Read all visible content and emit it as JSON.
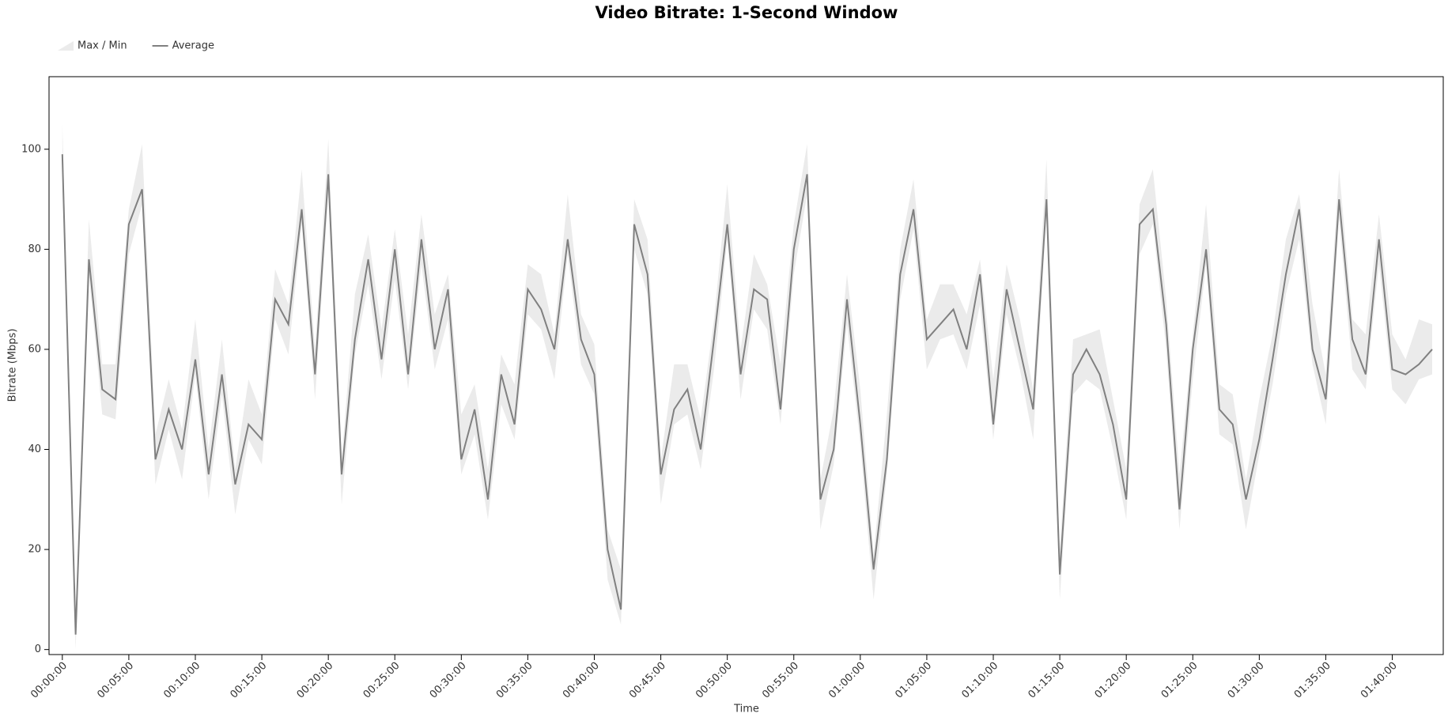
{
  "chart_data": {
    "type": "line",
    "title": "Video Bitrate: 1-Second Window",
    "x_label": "Time",
    "y_label": "Bitrate (Mbps)",
    "x": [
      0,
      60,
      120,
      180,
      240,
      300,
      360,
      420,
      480,
      540,
      600,
      660,
      720,
      780,
      840,
      900,
      960,
      1020,
      1080,
      1140,
      1200,
      1260,
      1320,
      1380,
      1440,
      1500,
      1560,
      1620,
      1680,
      1740,
      1800,
      1860,
      1920,
      1980,
      2040,
      2100,
      2160,
      2220,
      2280,
      2340,
      2400,
      2460,
      2520,
      2580,
      2640,
      2700,
      2760,
      2820,
      2880,
      2940,
      3000,
      3060,
      3120,
      3180,
      3240,
      3300,
      3360,
      3420,
      3480,
      3540,
      3600,
      3660,
      3720,
      3780,
      3840,
      3900,
      3960,
      4020,
      4080,
      4140,
      4200,
      4260,
      4320,
      4380,
      4440,
      4500,
      4560,
      4620,
      4680,
      4740,
      4800,
      4860,
      4920,
      4980,
      5040,
      5100,
      5160,
      5220,
      5280,
      5340,
      5400,
      5460,
      5520,
      5580,
      5640,
      5700,
      5760,
      5820,
      5880,
      5940,
      6000,
      6060,
      6120,
      6180
    ],
    "series": [
      {
        "name": "Max / Min",
        "color": "#ebebeb",
        "max": [
          105,
          7,
          86,
          57,
          57,
          88,
          101,
          43,
          54,
          44,
          66,
          40,
          62,
          36,
          54,
          47,
          76,
          69,
          96,
          60,
          102,
          38,
          71,
          83,
          64,
          84,
          63,
          87,
          67,
          75,
          47,
          53,
          36,
          59,
          53,
          77,
          75,
          63,
          91,
          67,
          61,
          24,
          16,
          90,
          82,
          38,
          57,
          57,
          46,
          66,
          93,
          60,
          79,
          73,
          57,
          85,
          101,
          34,
          48,
          75,
          52,
          19,
          47,
          80,
          94,
          66,
          73,
          73,
          67,
          78,
          54,
          77,
          66,
          52,
          98,
          20,
          62,
          63,
          64,
          50,
          36,
          89,
          96,
          70,
          35,
          63,
          89,
          53,
          51,
          34,
          50,
          63,
          82,
          91,
          69,
          55,
          96,
          66,
          63,
          87,
          63,
          58,
          66,
          65
        ],
        "min": [
          95,
          0,
          75,
          47,
          46,
          79,
          89,
          33,
          44,
          34,
          55,
          30,
          51,
          27,
          42,
          37,
          66,
          59,
          85,
          50,
          91,
          29,
          59,
          73,
          54,
          74,
          52,
          77,
          56,
          66,
          35,
          43,
          26,
          49,
          42,
          67,
          64,
          54,
          79,
          57,
          51,
          14,
          5,
          80,
          71,
          29,
          45,
          47,
          36,
          56,
          82,
          50,
          68,
          64,
          45,
          75,
          91,
          24,
          37,
          65,
          41,
          10,
          35,
          70,
          84,
          56,
          62,
          63,
          56,
          69,
          42,
          67,
          56,
          42,
          87,
          10,
          51,
          54,
          52,
          40,
          26,
          79,
          85,
          60,
          24,
          54,
          77,
          43,
          41,
          24,
          39,
          53,
          71,
          82,
          57,
          45,
          86,
          56,
          52,
          77,
          52,
          49,
          54,
          55
        ]
      },
      {
        "name": "Average",
        "color": "#808080",
        "values": [
          99,
          3,
          78,
          52,
          50,
          85,
          92,
          38,
          48,
          40,
          58,
          35,
          55,
          33,
          45,
          42,
          70,
          65,
          88,
          55,
          95,
          35,
          62,
          78,
          58,
          80,
          55,
          82,
          60,
          72,
          38,
          48,
          30,
          55,
          45,
          72,
          68,
          60,
          82,
          62,
          55,
          20,
          8,
          85,
          75,
          35,
          48,
          52,
          40,
          62,
          85,
          55,
          72,
          70,
          48,
          80,
          95,
          30,
          40,
          70,
          45,
          16,
          38,
          75,
          88,
          62,
          65,
          68,
          60,
          75,
          45,
          72,
          60,
          48,
          90,
          15,
          55,
          60,
          55,
          45,
          30,
          85,
          88,
          65,
          28,
          60,
          80,
          48,
          45,
          30,
          42,
          58,
          75,
          88,
          60,
          50,
          90,
          62,
          55,
          82,
          56,
          55,
          57,
          60
        ]
      }
    ],
    "xlim": [
      -60,
      6230
    ],
    "ylim": [
      -1,
      114.5
    ],
    "xticks": [
      {
        "value": 0,
        "label": "00:00:00"
      },
      {
        "value": 300,
        "label": "00:05:00"
      },
      {
        "value": 600,
        "label": "00:10:00"
      },
      {
        "value": 900,
        "label": "00:15:00"
      },
      {
        "value": 1200,
        "label": "00:20:00"
      },
      {
        "value": 1500,
        "label": "00:25:00"
      },
      {
        "value": 1800,
        "label": "00:30:00"
      },
      {
        "value": 2100,
        "label": "00:35:00"
      },
      {
        "value": 2400,
        "label": "00:40:00"
      },
      {
        "value": 2700,
        "label": "00:45:00"
      },
      {
        "value": 3000,
        "label": "00:50:00"
      },
      {
        "value": 3300,
        "label": "00:55:00"
      },
      {
        "value": 3600,
        "label": "01:00:00"
      },
      {
        "value": 3900,
        "label": "01:05:00"
      },
      {
        "value": 4200,
        "label": "01:10:00"
      },
      {
        "value": 4500,
        "label": "01:15:00"
      },
      {
        "value": 4800,
        "label": "01:20:00"
      },
      {
        "value": 5100,
        "label": "01:25:00"
      },
      {
        "value": 5400,
        "label": "01:30:00"
      },
      {
        "value": 5700,
        "label": "01:35:00"
      },
      {
        "value": 6000,
        "label": "01:40:00"
      }
    ],
    "yticks": [
      0,
      20,
      40,
      60,
      80,
      100
    ],
    "grid": false
  }
}
